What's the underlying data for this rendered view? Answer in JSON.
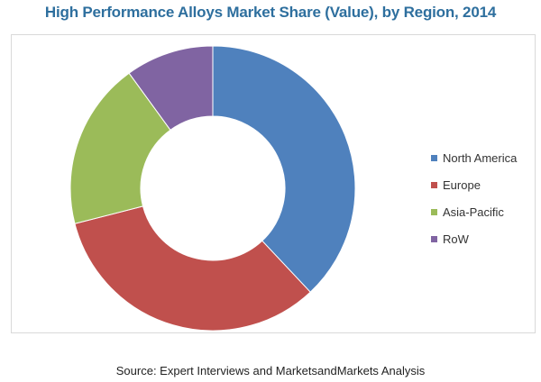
{
  "chart_data": {
    "type": "pie",
    "subtype": "donut",
    "title": "High Performance Alloys Market Share (Value), by Region, 2014",
    "categories": [
      "North America",
      "Europe",
      "Asia-Pacific",
      "RoW"
    ],
    "values": [
      38,
      33,
      19,
      10
    ],
    "unit": "%",
    "colors": [
      "#4f81bd",
      "#c0504d",
      "#9bbb59",
      "#8064a2"
    ],
    "start_angle_deg": 0,
    "direction": "clockwise",
    "legend_position": "right"
  },
  "source": "Source: Expert Interviews and MarketsandMarkets Analysis"
}
